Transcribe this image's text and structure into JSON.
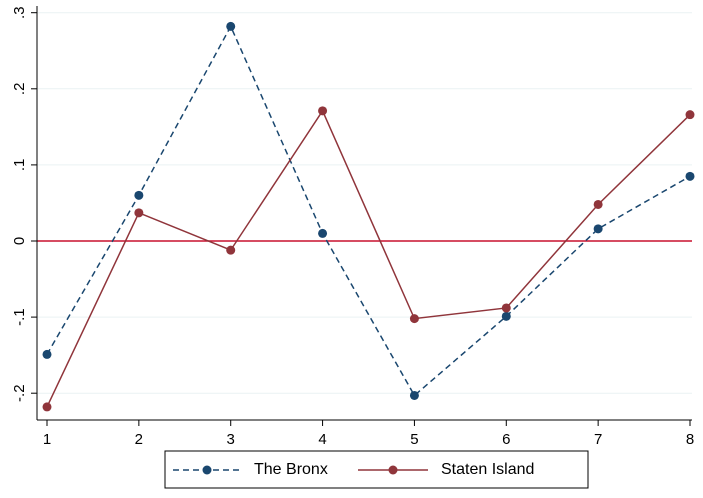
{
  "chart_data": {
    "type": "line",
    "x": [
      1,
      2,
      3,
      4,
      5,
      6,
      7,
      8
    ],
    "xlim": [
      1,
      8
    ],
    "ylim": [
      -0.25,
      0.31
    ],
    "xticks": [
      "1",
      "2",
      "3",
      "4",
      "5",
      "6",
      "7",
      "8"
    ],
    "yticks": [
      {
        "value": -0.2,
        "label": "-.2"
      },
      {
        "value": -0.1,
        "label": "-.1"
      },
      {
        "value": 0,
        "label": "0"
      },
      {
        "value": 0.1,
        "label": ".1"
      },
      {
        "value": 0.2,
        "label": ".2"
      },
      {
        "value": 0.3,
        "label": ".3"
      }
    ],
    "reference_line": {
      "y": 0,
      "color": "#c8102e"
    },
    "grid": true,
    "legend_position": "bottom",
    "series": [
      {
        "name": "The Bronx",
        "values": [
          -0.149,
          0.06,
          0.282,
          0.01,
          -0.203,
          -0.099,
          0.016,
          0.085
        ],
        "color": "#1a476f",
        "dash": "dashed"
      },
      {
        "name": "Staten Island",
        "values": [
          -0.218,
          0.037,
          -0.012,
          0.171,
          -0.102,
          -0.088,
          0.048,
          0.166
        ],
        "color": "#90353b",
        "dash": "solid"
      }
    ]
  }
}
